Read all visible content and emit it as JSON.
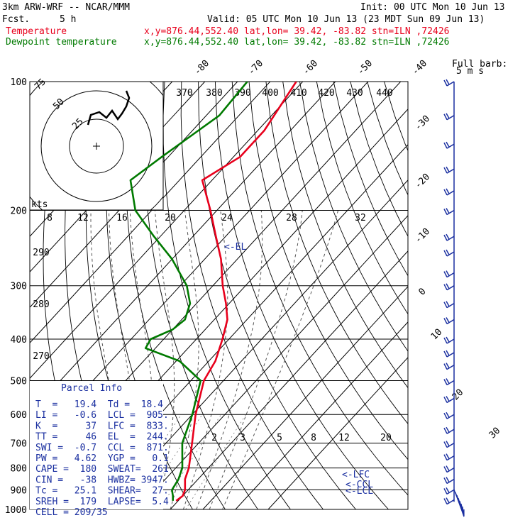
{
  "header": {
    "model": "3km ARW-WRF -- NCAR/MMM",
    "init": "Init: 00 UTC Mon 10 Jun 13",
    "fcst_label": "Fcst.",
    "fcst_value": "5 h",
    "valid": "Valid: 05 UTC Mon 10 Jun 13 (23 MDT Sun 09 Jun 13)",
    "temp_label": "Temperature",
    "dew_label": "Dewpoint temperature",
    "temp_info": "x,y=876.44,552.40   lat,lon= 39.42, -83.82  stn=ILN ,72426",
    "dew_info": "x,y=876.44,552.40   lat,lon= 39.42, -83.82  stn=ILN ,72426"
  },
  "colors": {
    "temperature": "#e8001c",
    "dewpoint": "#007a00",
    "text_blue": "#1a2fa0",
    "grid": "#000000",
    "moist_adiabat": "#555555"
  },
  "parcel_info": {
    "title": "Parcel Info",
    "rows": [
      "T  =   19.4  Td =  18.4",
      "LI =   -0.6  LCL =  905.",
      "K  =     37  LFC =  833.",
      "TT =     46  EL  =  244.",
      "SWI =  -0.7  CCL =  871.",
      "PW =   4.62  YGP =   0.1",
      "CAPE =  180  SWEAT=  261",
      "CIN =   -38  HWBZ= 3947.",
      "Tc =   25.1  SHEAR=  27.",
      "SREH =  179  LAPSE=  5.4",
      "CELL = 209/35"
    ]
  },
  "hodograph": {
    "unit_label": "kts",
    "ring_labels": [
      "25",
      "50",
      "75"
    ]
  },
  "wind_legend": {
    "line1": "Full barb:",
    "line2": "5 m s"
  },
  "annotations": {
    "el": "<-EL",
    "lfc": "<-LFC",
    "ccl": "<-CCL",
    "lcl": "<-LCL"
  },
  "chart_data": {
    "type": "line",
    "diagram": "skew-T log-p",
    "y_axis": {
      "label": "",
      "scale": "log",
      "range": [
        1000,
        100
      ],
      "ticks": [
        100,
        200,
        300,
        400,
        500,
        600,
        700,
        800,
        900,
        1000
      ]
    },
    "skewed_isotherm_labels": [
      "-80",
      "-70",
      "-60",
      "-50",
      "-40",
      "-30",
      "-20",
      "-10",
      "0",
      "10",
      "20",
      "30",
      "40"
    ],
    "theta_labels": [
      "370",
      "380",
      "390",
      "400",
      "410",
      "420",
      "430",
      "440",
      "290",
      "280",
      "270"
    ],
    "mixing_ratio_labels": [
      "8",
      "12",
      "16",
      "20",
      "24",
      "28",
      "32",
      "2",
      "3",
      "5",
      "8",
      "12",
      "20"
    ],
    "series": [
      {
        "name": "Temperature",
        "pressure": [
          100,
          130,
          150,
          170,
          200,
          230,
          260,
          300,
          330,
          360,
          400,
          450,
          500,
          600,
          700,
          800,
          850,
          900,
          930,
          955
        ],
        "temperature": [
          -62,
          -58,
          -58,
          -63,
          -52,
          -43,
          -35,
          -27,
          -21,
          -16,
          -12,
          -8,
          -6,
          1,
          8,
          14,
          16,
          19,
          20,
          19.4
        ]
      },
      {
        "name": "Dewpoint temperature",
        "pressure": [
          100,
          120,
          150,
          170,
          200,
          230,
          260,
          300,
          330,
          360,
          380,
          400,
          420,
          450,
          500,
          600,
          700,
          800,
          850,
          900,
          930,
          955
        ],
        "temperature": [
          -77,
          -76,
          -82,
          -85,
          -75,
          -62,
          -50,
          -38,
          -32,
          -29,
          -30,
          -34,
          -33,
          -19,
          -7,
          0,
          5,
          12,
          14,
          15,
          17,
          18.4
        ]
      }
    ],
    "wind_barb_levels": [
      100,
      120,
      140,
      160,
      180,
      200,
      230,
      250,
      280,
      300,
      330,
      360,
      400,
      430,
      460,
      500,
      550,
      600,
      650,
      700,
      750,
      800,
      850,
      900,
      950
    ]
  }
}
